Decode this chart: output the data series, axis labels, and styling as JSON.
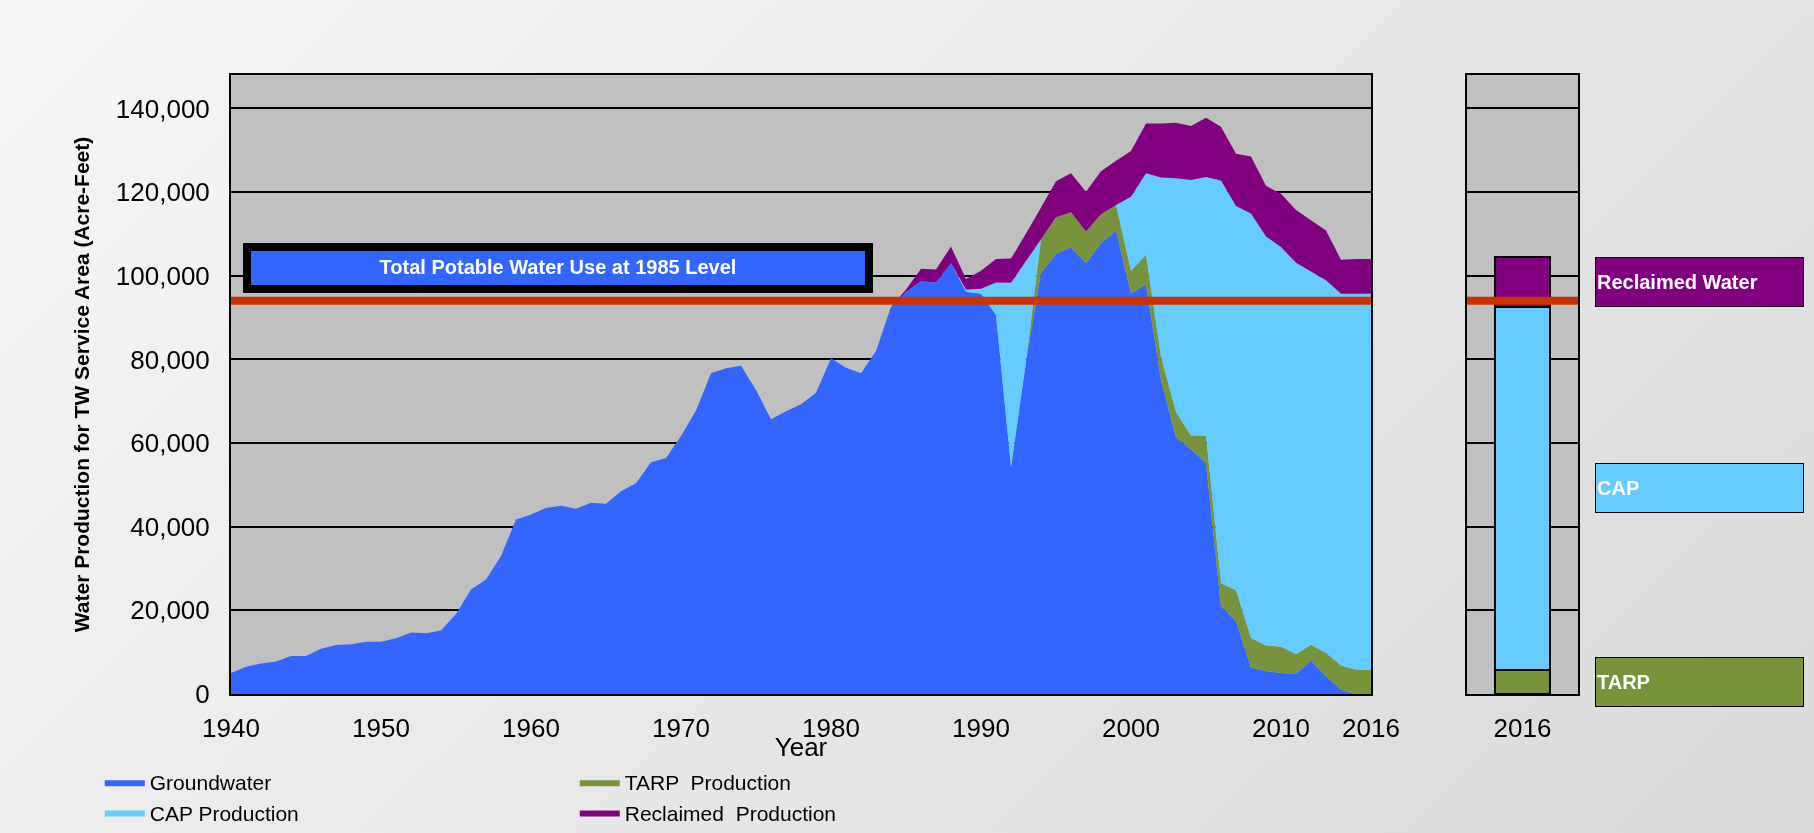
{
  "chart_data": [
    {
      "type": "area",
      "stacked": true,
      "xlabel": "Year",
      "ylabel": "Water Production for TW Service Area (Acre-Feet)",
      "x": [
        1940,
        1941,
        1942,
        1943,
        1944,
        1945,
        1946,
        1947,
        1948,
        1949,
        1950,
        1951,
        1952,
        1953,
        1954,
        1955,
        1956,
        1957,
        1958,
        1959,
        1960,
        1961,
        1962,
        1963,
        1964,
        1965,
        1966,
        1967,
        1968,
        1969,
        1970,
        1971,
        1972,
        1973,
        1974,
        1975,
        1976,
        1977,
        1978,
        1979,
        1980,
        1981,
        1982,
        1983,
        1984,
        1985,
        1986,
        1987,
        1988,
        1989,
        1990,
        1991,
        1992,
        1993,
        1994,
        1995,
        1996,
        1997,
        1998,
        1999,
        2000,
        2001,
        2002,
        2003,
        2004,
        2005,
        2006,
        2007,
        2008,
        2009,
        2010,
        2011,
        2012,
        2013,
        2014,
        2015,
        2016
      ],
      "series": [
        {
          "name": "Groundwater",
          "color": "#3366ff",
          "values": [
            5000,
            6500,
            7300,
            7800,
            9100,
            9100,
            10800,
            11700,
            11900,
            12500,
            12500,
            13300,
            14700,
            14500,
            15200,
            19100,
            25000,
            27400,
            33000,
            41700,
            42900,
            44500,
            45000,
            44300,
            45700,
            45500,
            48500,
            50400,
            55400,
            56400,
            61700,
            67800,
            76700,
            77900,
            78500,
            72700,
            65700,
            67600,
            69300,
            72000,
            80300,
            78000,
            76700,
            82000,
            92600,
            96200,
            98700,
            98400,
            103000,
            96200,
            95700,
            90600,
            54200,
            79500,
            100700,
            105200,
            106800,
            103000,
            107800,
            110800,
            95800,
            97900,
            75000,
            61300,
            58500,
            55200,
            20900,
            17400,
            6300,
            5500,
            5000,
            4700,
            8000,
            4200,
            1000,
            0,
            0
          ]
        },
        {
          "name": "TARP  Production",
          "color": "#77933c",
          "values": [
            0,
            0,
            0,
            0,
            0,
            0,
            0,
            0,
            0,
            0,
            0,
            0,
            0,
            0,
            0,
            0,
            0,
            0,
            0,
            0,
            0,
            0,
            0,
            0,
            0,
            0,
            0,
            0,
            0,
            0,
            0,
            0,
            0,
            0,
            0,
            0,
            0,
            0,
            0,
            0,
            0,
            0,
            0,
            0,
            0,
            0,
            0,
            0,
            0,
            0,
            0,
            0,
            0,
            0,
            8000,
            8800,
            8400,
            7600,
            6900,
            6100,
            5400,
            7100,
            5600,
            6100,
            3300,
            6600,
            5600,
            7400,
            7100,
            6100,
            6300,
            4800,
            3800,
            5600,
            5800,
            5800,
            5800
          ]
        },
        {
          "name": "CAP Production",
          "color": "#66ccff",
          "values": [
            0,
            0,
            0,
            0,
            0,
            0,
            0,
            0,
            0,
            0,
            0,
            0,
            0,
            0,
            0,
            0,
            0,
            0,
            0,
            0,
            0,
            0,
            0,
            0,
            0,
            0,
            0,
            0,
            0,
            0,
            0,
            0,
            0,
            0,
            0,
            0,
            0,
            0,
            0,
            0,
            0,
            0,
            0,
            0,
            0,
            0,
            0,
            0,
            0,
            500,
            1200,
            7800,
            44100,
            24000,
            0,
            0,
            0,
            0,
            0,
            0,
            17700,
            19500,
            42900,
            55900,
            61100,
            61800,
            96300,
            91900,
            101500,
            97800,
            95600,
            93600,
            89200,
            89100,
            88900,
            89900,
            89900
          ]
        },
        {
          "name": "Reclaimed  Production",
          "color": "#800080",
          "values": [
            0,
            0,
            0,
            0,
            0,
            0,
            0,
            0,
            0,
            0,
            0,
            0,
            0,
            0,
            0,
            0,
            0,
            0,
            0,
            0,
            0,
            0,
            0,
            0,
            0,
            0,
            0,
            0,
            0,
            0,
            0,
            0,
            0,
            0,
            0,
            0,
            0,
            0,
            0,
            0,
            0,
            0,
            0,
            0,
            0,
            500,
            3000,
            3100,
            4000,
            2500,
            4300,
            5600,
            5800,
            6600,
            7600,
            8600,
            9300,
            9500,
            10300,
            10600,
            10900,
            11900,
            12900,
            13300,
            12900,
            14200,
            12800,
            12500,
            13600,
            12100,
            12700,
            12600,
            12300,
            11900,
            8100,
            8300,
            8300
          ]
        }
      ],
      "xlim": [
        1940,
        2016
      ],
      "xticks": [
        1940,
        1950,
        1960,
        1970,
        1980,
        1990,
        2000,
        2010,
        2016
      ],
      "ylim": [
        0,
        148000
      ],
      "yticks": [
        {
          "value": 0,
          "label": "0"
        },
        {
          "value": 20000,
          "label": "20,000"
        },
        {
          "value": 40000,
          "label": "40,000"
        },
        {
          "value": 60000,
          "label": "60,000"
        },
        {
          "value": 80000,
          "label": "80,000"
        },
        {
          "value": 100000,
          "label": "100,000"
        },
        {
          "value": 120000,
          "label": "120,000"
        },
        {
          "value": 140000,
          "label": "140,000"
        }
      ],
      "grid": "y",
      "legend": "bottom",
      "ref_lines": [
        {
          "axis": "y",
          "value": 94000,
          "label": "Total Potable Water Use at 1985 Level",
          "color": "#cc3300"
        }
      ]
    },
    {
      "type": "bar",
      "stacked": true,
      "categories": [
        "2016"
      ],
      "series": [
        {
          "name": "TARP",
          "color": "#77933c",
          "values": [
            5800
          ]
        },
        {
          "name": "CAP",
          "color": "#66ccff",
          "values": [
            86800
          ]
        },
        {
          "name": "Reclaimed Water",
          "color": "#800080",
          "values": [
            12000
          ]
        }
      ],
      "ylim": [
        0,
        148000
      ],
      "yticks": [
        0,
        20000,
        40000,
        60000,
        80000,
        100000,
        120000,
        140000
      ],
      "tick_labels": "x",
      "grid": "y",
      "ref_lines": [
        {
          "axis": "y",
          "value": 94000,
          "color": "#cc3300"
        }
      ]
    }
  ]
}
